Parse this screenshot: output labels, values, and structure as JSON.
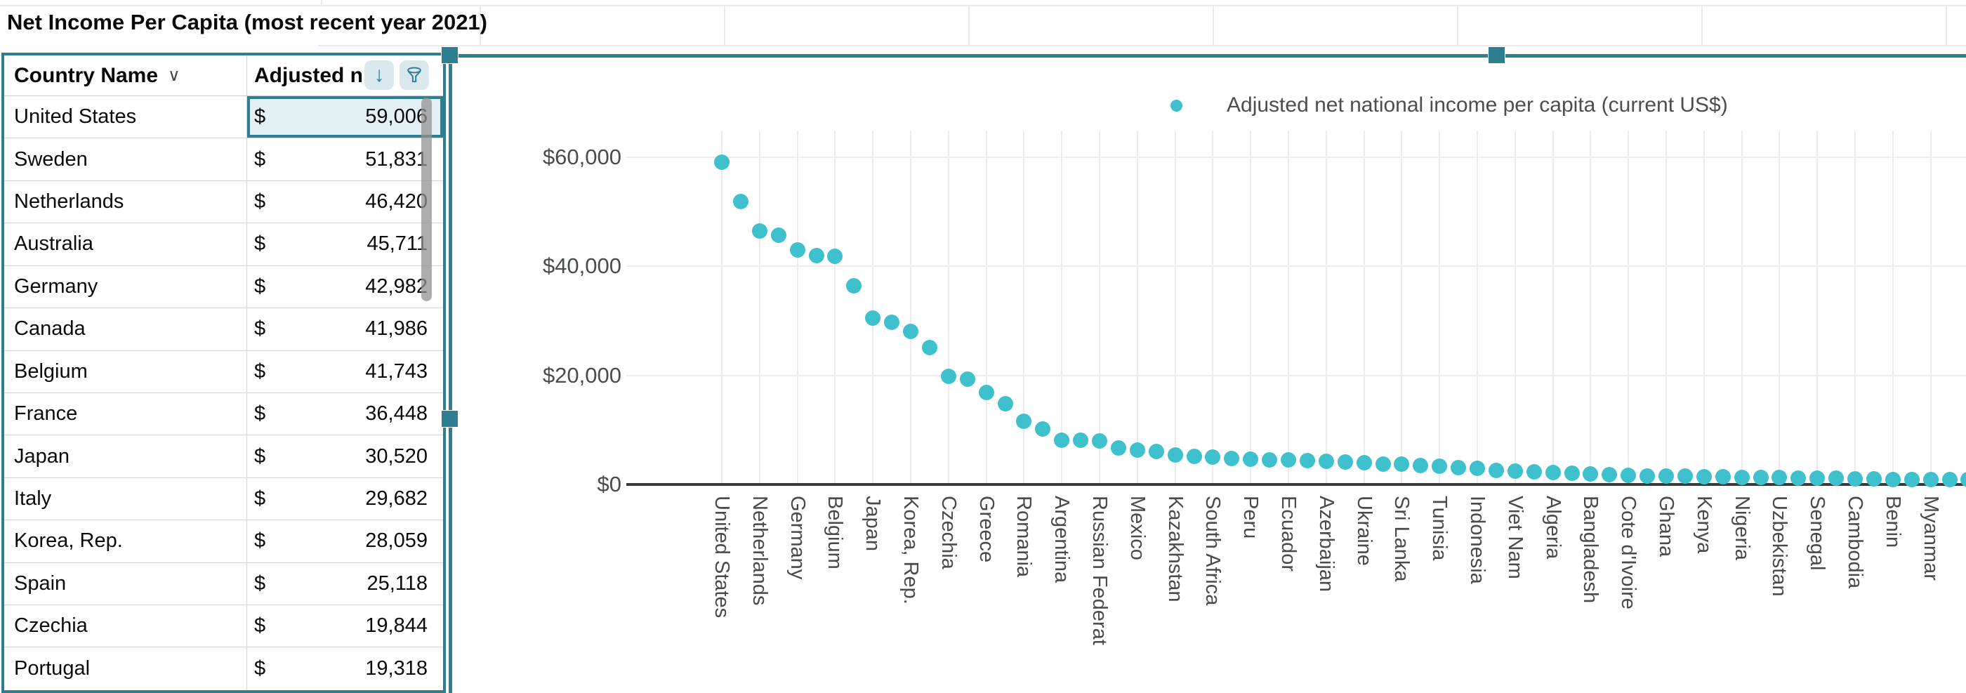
{
  "colors": {
    "accent_teal": "#2E7E91",
    "series_teal": "#3EC1CC",
    "selected_cell_fill": "#E3F1F5",
    "icon_chip_fill": "#D8E8EC"
  },
  "sheet": {
    "title": "Net Income Per Capita (most recent year 2021)"
  },
  "table": {
    "header": {
      "country_label": "Country Name",
      "country_menu_icon": "chevron-down",
      "value_label": "Adjusted n",
      "sort_icon": "arrow-down-sort",
      "filter_icon": "funnel-filter"
    },
    "currency_symbol": "$",
    "rows": [
      {
        "country": "United States",
        "value": "59,006",
        "selected": true
      },
      {
        "country": "Sweden",
        "value": "51,831",
        "selected": false
      },
      {
        "country": "Netherlands",
        "value": "46,420",
        "selected": false
      },
      {
        "country": "Australia",
        "value": "45,711",
        "selected": false
      },
      {
        "country": "Germany",
        "value": "42,982",
        "selected": false
      },
      {
        "country": "Canada",
        "value": "41,986",
        "selected": false
      },
      {
        "country": "Belgium",
        "value": "41,743",
        "selected": false
      },
      {
        "country": "France",
        "value": "36,448",
        "selected": false
      },
      {
        "country": "Japan",
        "value": "30,520",
        "selected": false
      },
      {
        "country": "Italy",
        "value": "29,682",
        "selected": false
      },
      {
        "country": "Korea, Rep.",
        "value": "28,059",
        "selected": false
      },
      {
        "country": "Spain",
        "value": "25,118",
        "selected": false
      },
      {
        "country": "Czechia",
        "value": "19,844",
        "selected": false
      },
      {
        "country": "Portugal",
        "value": "19,318",
        "selected": false
      }
    ]
  },
  "chart_data": {
    "type": "scatter",
    "legend": {
      "label": "Adjusted net national income per capita (current US$)",
      "marker_color": "#3EC1CC",
      "position": "top-center"
    },
    "y_axis": {
      "tick_labels": [
        "$60,000",
        "$40,000",
        "$20,000",
        "$0"
      ],
      "tick_values": [
        60000,
        40000,
        20000,
        0
      ],
      "range": [
        0,
        65000
      ],
      "grid": true
    },
    "x_axis": {
      "label_rotation_deg": 90,
      "label_step": 2,
      "labels": [
        "United States",
        "Netherlands",
        "Germany",
        "Belgium",
        "Japan",
        "Korea, Rep.",
        "Czechia",
        "Greece",
        "Romania",
        "Argentina",
        "Russian Federat",
        "Mexico",
        "Kazakhstan",
        "South Africa",
        "Peru",
        "Ecuador",
        "Azerbaijan",
        "Ukraine",
        "Sri Lanka",
        "Tunisia",
        "Indonesia",
        "Viet Nam",
        "Algeria",
        "Bangladesh",
        "Cote d'Ivoire",
        "Ghana",
        "Kenya",
        "Nigeria",
        "Uzbekistan",
        "Senegal",
        "Cambodia",
        "Benin",
        "Myanmar"
      ]
    },
    "series": [
      {
        "name": "Adjusted net national income per capita (current US$)",
        "values": [
          59006,
          51831,
          46420,
          45711,
          42982,
          41986,
          41743,
          36448,
          30520,
          29682,
          28059,
          25118,
          19844,
          19318,
          16900,
          14800,
          11600,
          10100,
          8150,
          8050,
          7950,
          6700,
          6300,
          6050,
          5400,
          5150,
          5000,
          4750,
          4600,
          4500,
          4450,
          4400,
          4200,
          4100,
          4000,
          3760,
          3700,
          3500,
          3400,
          3100,
          2900,
          2600,
          2450,
          2300,
          2200,
          2000,
          1900,
          1800,
          1700,
          1600,
          1550,
          1500,
          1450,
          1400,
          1350,
          1300,
          1250,
          1200,
          1150,
          1100,
          1050,
          1000,
          950,
          920,
          900,
          880,
          860
        ]
      }
    ]
  }
}
